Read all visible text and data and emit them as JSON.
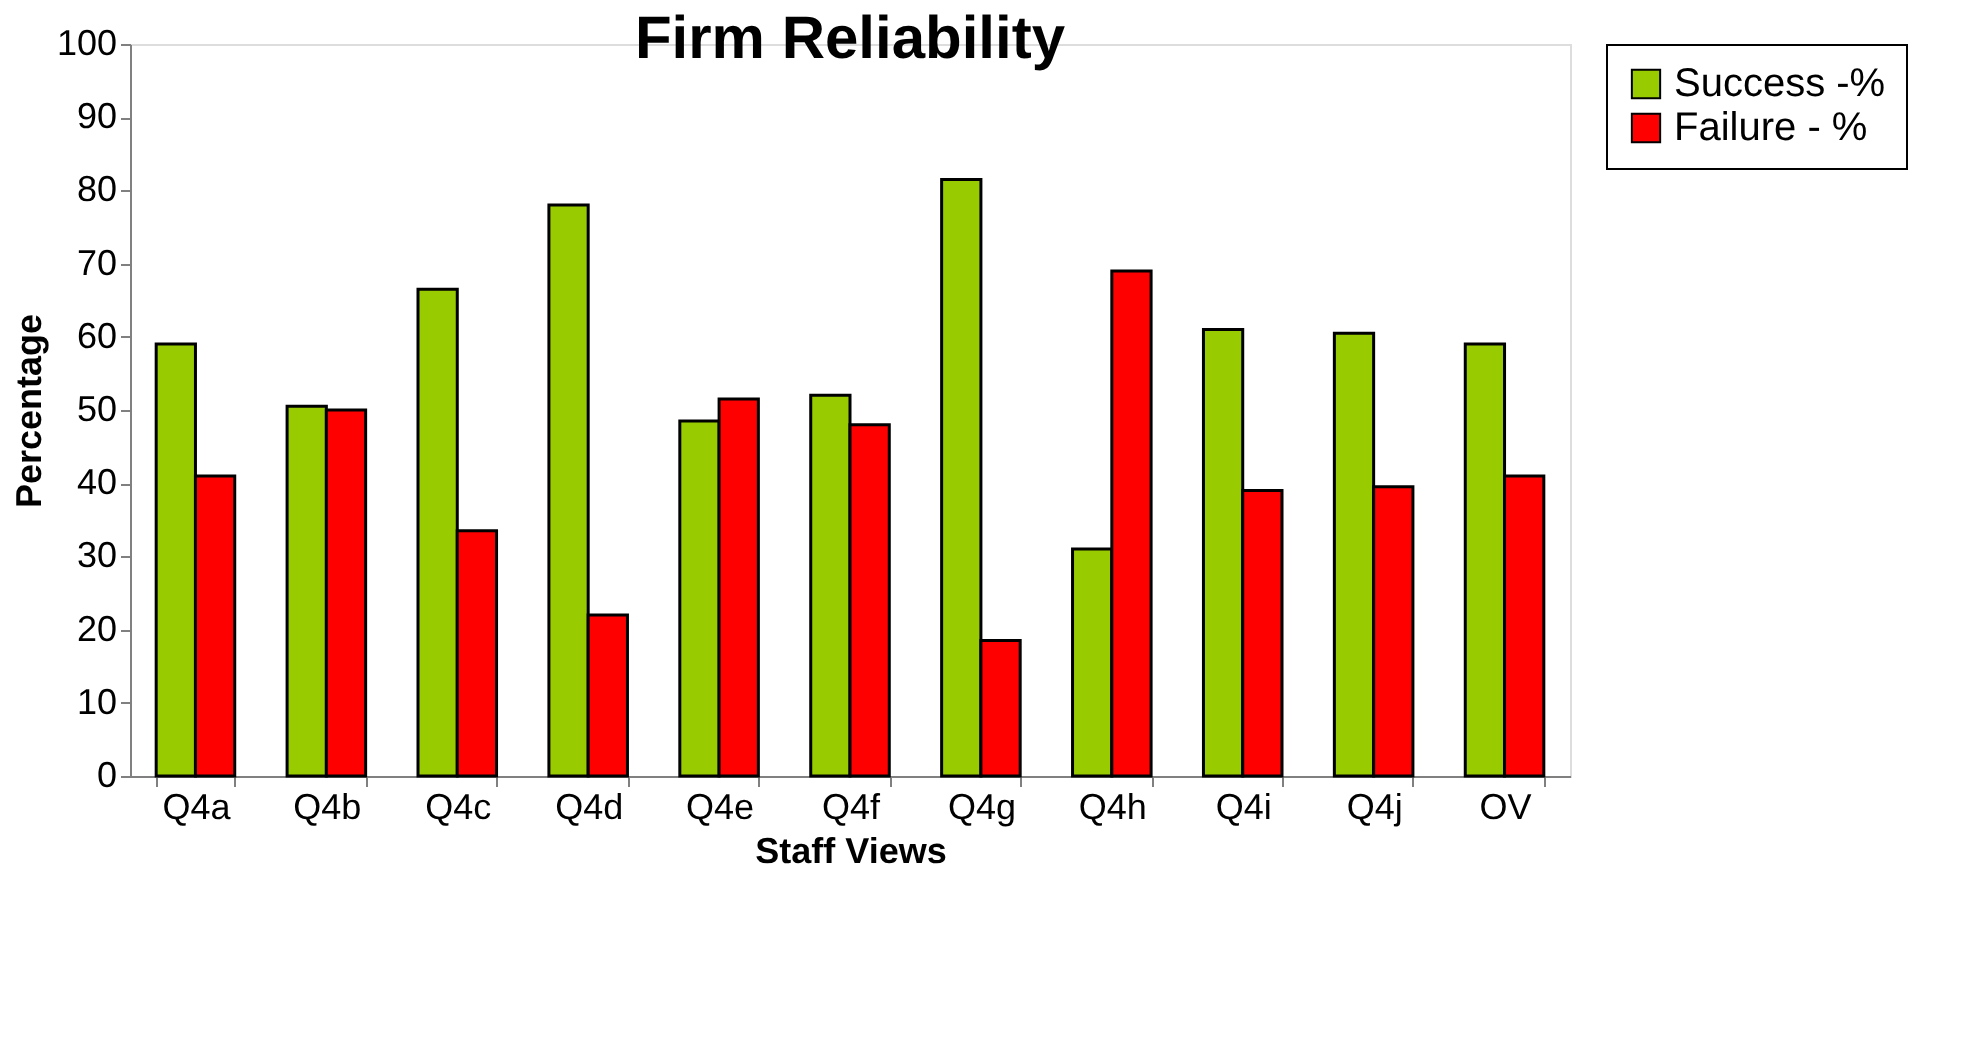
{
  "chart_data": {
    "type": "bar",
    "title": "Firm Reliability",
    "xlabel": "Staff Views",
    "ylabel": "Percentage",
    "categories": [
      "Q4a",
      "Q4b",
      "Q4c",
      "Q4d",
      "Q4e",
      "Q4f",
      "Q4g",
      "Q4h",
      "Q4i",
      "Q4j",
      "OV"
    ],
    "series": [
      {
        "name": "Success -%",
        "color": "#99cc00",
        "values": [
          59,
          50.5,
          66.5,
          78,
          48.5,
          52,
          81.5,
          31,
          61,
          60.5,
          59
        ]
      },
      {
        "name": "Failure - %",
        "color": "#ff0000",
        "values": [
          41,
          50,
          33.5,
          22,
          51.5,
          48,
          18.5,
          69,
          39,
          39.5,
          41
        ]
      }
    ],
    "ylim": [
      0,
      100
    ],
    "yticks": [
      0,
      10,
      20,
      30,
      40,
      50,
      60,
      70,
      80,
      90,
      100
    ],
    "grid": false,
    "legend": "right"
  }
}
